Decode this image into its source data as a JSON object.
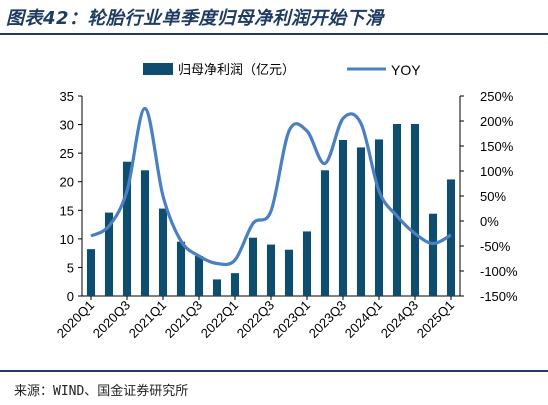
{
  "figure": {
    "title": "图表42：轮胎行业单季度归母净利润开始下滑",
    "source": "来源：WIND、国金证券研究所"
  },
  "colors": {
    "bar": "#0f4d6e",
    "line": "#4a7fc1",
    "rule": "#1f3b63"
  },
  "chart_data": {
    "type": "bar+line",
    "categories": [
      "2020Q1",
      "2020Q2",
      "2020Q3",
      "2020Q4",
      "2021Q1",
      "2021Q2",
      "2021Q3",
      "2021Q4",
      "2022Q1",
      "2022Q2",
      "2022Q3",
      "2022Q4",
      "2023Q1",
      "2023Q2",
      "2023Q3",
      "2023Q4",
      "2024Q1",
      "2024Q2",
      "2024Q3",
      "2024Q4",
      "2025Q1"
    ],
    "x_tick_labels": [
      "2020Q1",
      "2020Q3",
      "2021Q1",
      "2021Q3",
      "2022Q1",
      "2022Q3",
      "2023Q1",
      "2023Q3",
      "2024Q1",
      "2024Q3",
      "2025Q1"
    ],
    "series": [
      {
        "name": "归母净利润（亿元）",
        "axis": "left",
        "type": "bar",
        "values": [
          8.2,
          14.6,
          23.5,
          22.0,
          15.3,
          9.5,
          7.0,
          2.9,
          4.0,
          10.2,
          9.0,
          8.1,
          11.3,
          22.0,
          27.3,
          26.0,
          27.4,
          30.1,
          30.1,
          14.4,
          20.4
        ]
      },
      {
        "name": "YOY",
        "axis": "right",
        "type": "line",
        "values": [
          -30,
          -10,
          60,
          225,
          50,
          -40,
          -70,
          -85,
          -78,
          -5,
          20,
          180,
          180,
          115,
          205,
          195,
          60,
          10,
          -25,
          -45,
          -28
        ]
      }
    ],
    "left_axis": {
      "min": 0,
      "max": 35,
      "ticks": [
        "0",
        "5",
        "10",
        "15",
        "20",
        "25",
        "30",
        "35"
      ]
    },
    "right_axis": {
      "min": -150,
      "max": 250,
      "ticks": [
        "-150%",
        "-100%",
        "-50%",
        "0%",
        "50%",
        "100%",
        "150%",
        "200%",
        "250%"
      ]
    },
    "legend_position": "top"
  }
}
